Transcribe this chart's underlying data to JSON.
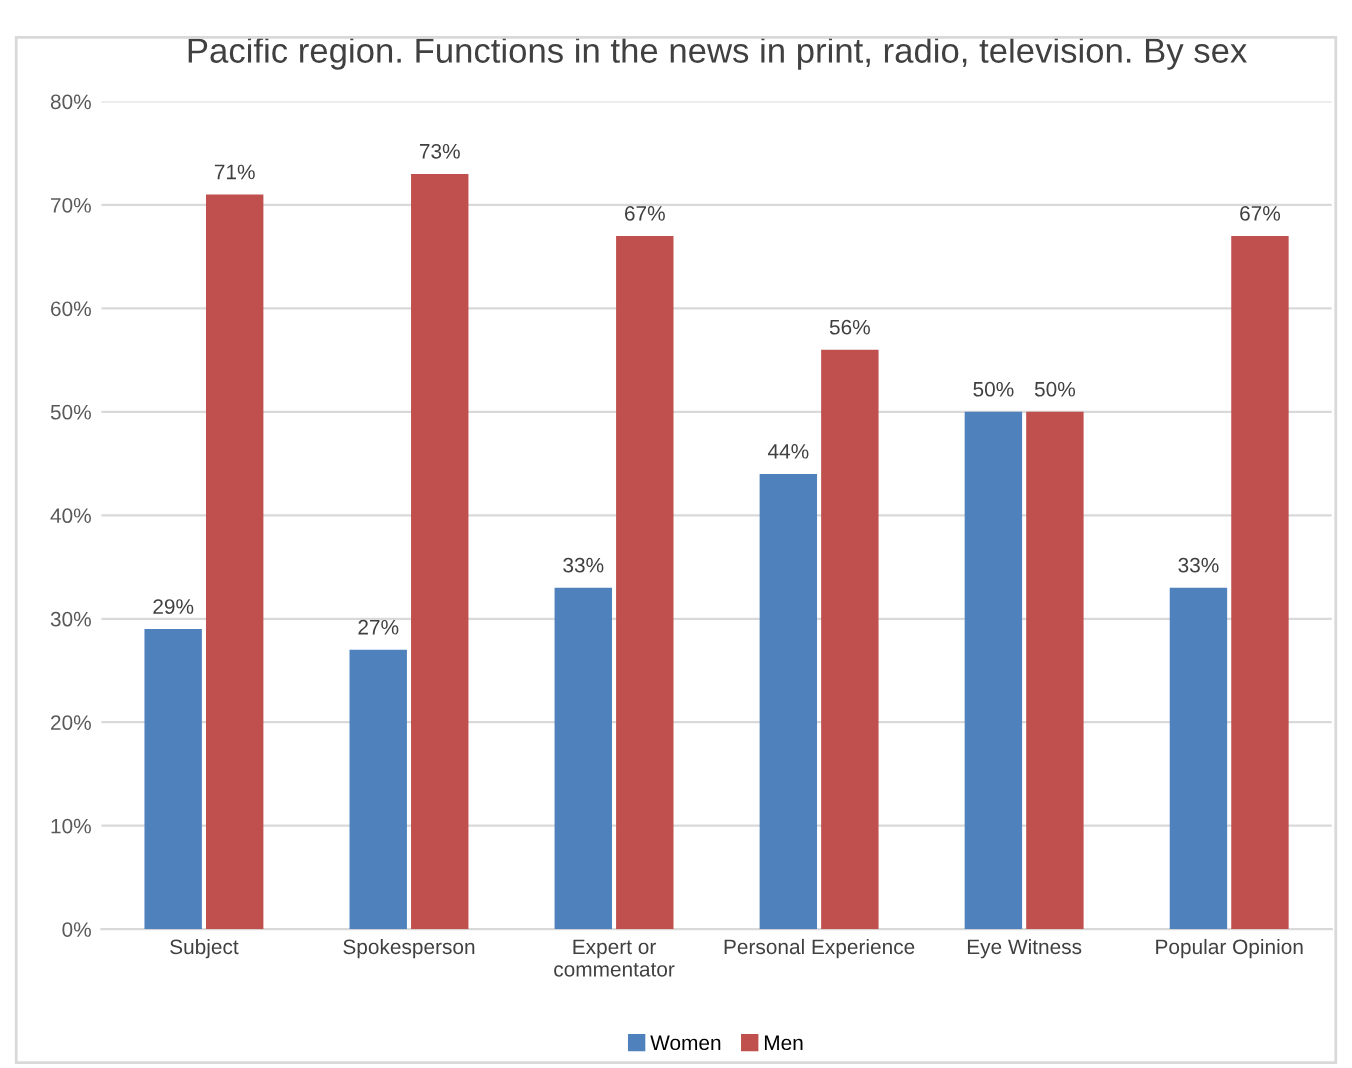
{
  "chart_data": {
    "type": "bar",
    "title": "Pacific region. Functions in the news in print, radio, television. By sex",
    "categories": [
      "Subject",
      "Spokesperson",
      "Expert or\ncommentator",
      "Personal Experience",
      "Eye Witness",
      "Popular Opinion"
    ],
    "series": [
      {
        "name": "Women",
        "color": "#4f81bd",
        "values": [
          29,
          27,
          33,
          44,
          50,
          33
        ],
        "value_labels": [
          "29%",
          "27%",
          "33%",
          "44%",
          "50%",
          "33%"
        ]
      },
      {
        "name": "Men",
        "color": "#c0504d",
        "values": [
          71,
          73,
          67,
          56,
          50,
          67
        ],
        "value_labels": [
          "71%",
          "73%",
          "67%",
          "56%",
          "50%",
          "67%"
        ]
      }
    ],
    "ylim": [
      0,
      80
    ],
    "yticks": [
      {
        "value": 0,
        "label": "0%"
      },
      {
        "value": 10,
        "label": "10%"
      },
      {
        "value": 20,
        "label": "20%"
      },
      {
        "value": 30,
        "label": "30%"
      },
      {
        "value": 40,
        "label": "40%"
      },
      {
        "value": 50,
        "label": "50%"
      },
      {
        "value": 60,
        "label": "60%"
      },
      {
        "value": 70,
        "label": "70%"
      },
      {
        "value": 80,
        "label": "80%"
      }
    ],
    "grid": "y",
    "legend": "bottom"
  }
}
